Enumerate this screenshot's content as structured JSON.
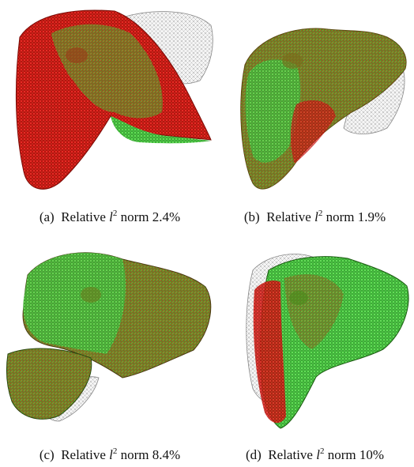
{
  "figure": {
    "panels": [
      {
        "id": "a",
        "prefix": "(a)",
        "text": "Relative",
        "symbol": "l",
        "sup": "2",
        "suffix": "norm 2.4%"
      },
      {
        "id": "b",
        "prefix": "(b)",
        "text": "Relative",
        "symbol": "l",
        "sup": "2",
        "suffix": "norm 1.9%"
      },
      {
        "id": "c",
        "prefix": "(c)",
        "text": "Relative",
        "symbol": "l",
        "sup": "2",
        "suffix": "norm 8.4%"
      },
      {
        "id": "d",
        "prefix": "(d)",
        "text": "Relative",
        "symbol": "l",
        "sup": "2",
        "suffix": "norm 10%"
      }
    ],
    "colors": {
      "red": "#e01010",
      "green": "#19d419",
      "gray": "#9a9a9a"
    }
  }
}
